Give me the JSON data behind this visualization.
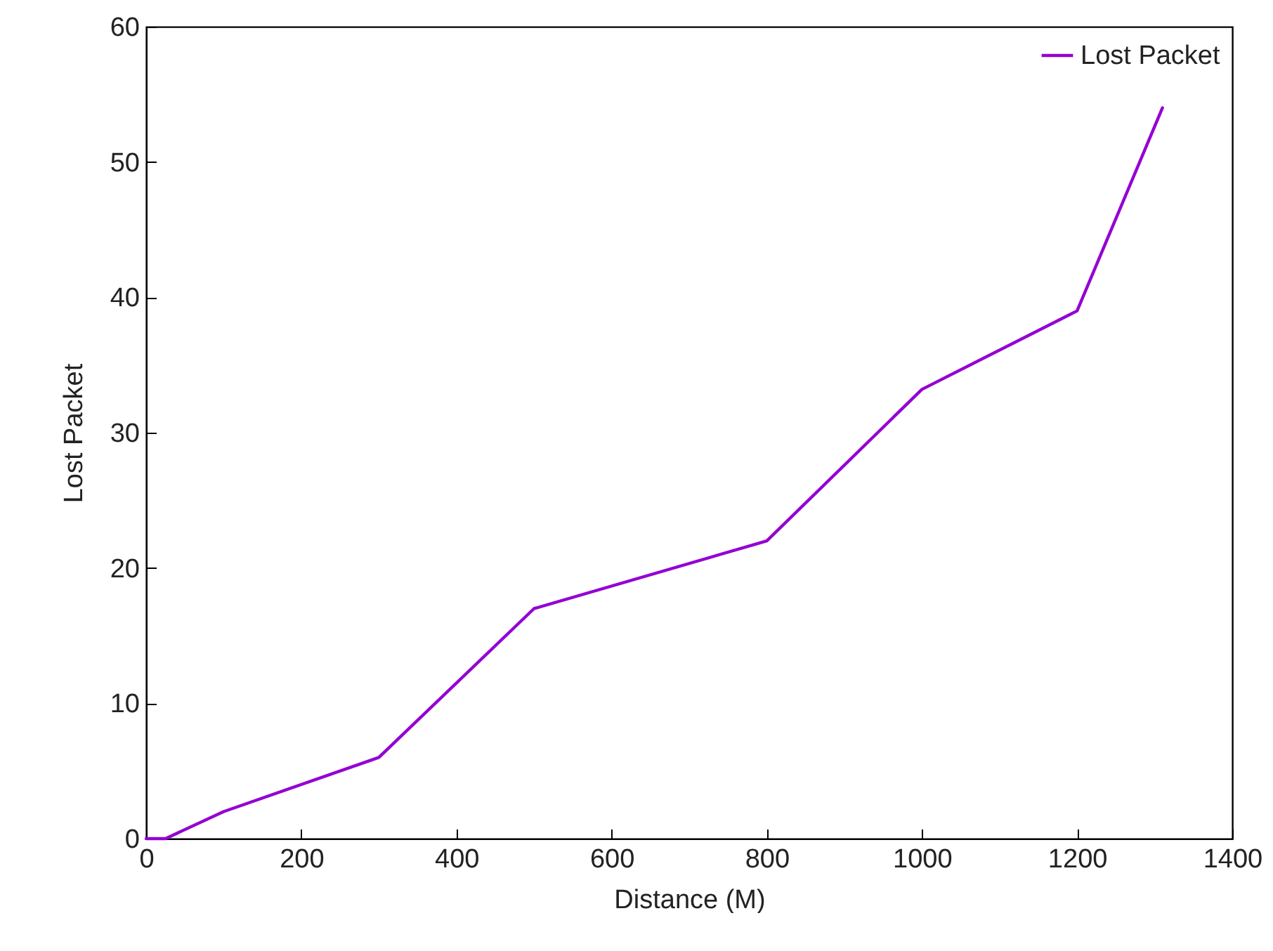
{
  "chart_data": {
    "type": "line",
    "xlabel": "Distance (M)",
    "ylabel": "Lost  Packet",
    "x": [
      0,
      25,
      100,
      300,
      500,
      800,
      1000,
      1200,
      1310
    ],
    "series": [
      {
        "name": "Lost Packet",
        "color": "#9400d3",
        "values": [
          0,
          0,
          2,
          6,
          17,
          22,
          33.2,
          39,
          54
        ]
      }
    ],
    "xlim": [
      0,
      1400
    ],
    "xticks": [
      0,
      200,
      400,
      600,
      800,
      1000,
      1200,
      1400
    ],
    "ylim": [
      0,
      60
    ],
    "yticks": [
      0,
      10,
      20,
      30,
      40,
      50,
      60
    ],
    "legend": "top right",
    "marker": "none",
    "line_style": "solid"
  }
}
